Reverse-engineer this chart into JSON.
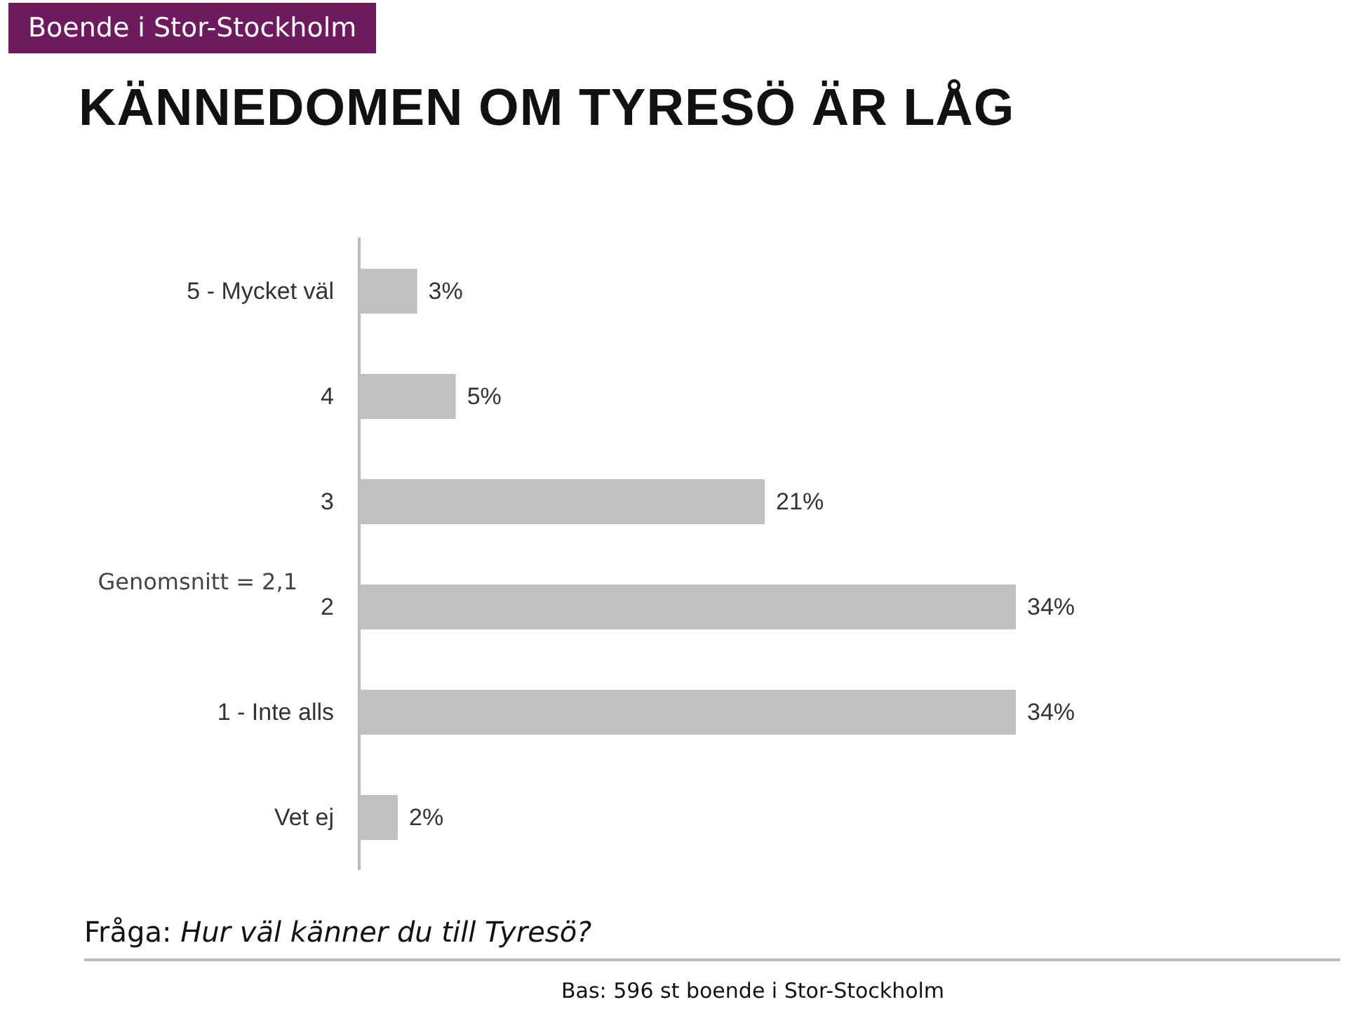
{
  "chart_data": {
    "type": "bar",
    "orientation": "horizontal",
    "title": "KÄNNEDOMEN OM TYRESÖ ÄR LÅG",
    "subtitle": "Boende i Stor-Stockholm",
    "categories": [
      "5 - Mycket väl",
      "4",
      "3",
      "2",
      "1 - Inte alls",
      "Vet ej"
    ],
    "values": [
      3,
      5,
      21,
      34,
      34,
      2
    ],
    "color": "#c0c0c0",
    "data_labels": true,
    "value_labels": [
      "3%",
      "5%",
      "21%",
      "34%",
      "34%",
      "2%"
    ],
    "annotations": [
      "Genomsnitt = 2,1",
      "Fråga: Hur väl känner du till Tyresö?",
      "Bas: 596 st boende i Stor-Stockholm"
    ]
  }
}
